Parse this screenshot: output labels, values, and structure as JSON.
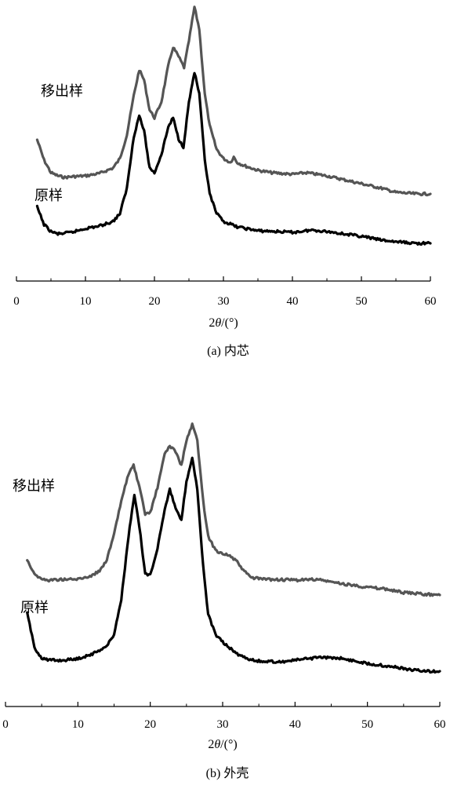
{
  "chart_data": [
    {
      "type": "line",
      "caption": "(a) 内芯",
      "xlabel_parts": [
        "2",
        "θ",
        "/(°)"
      ],
      "xlim": [
        0,
        60
      ],
      "x_ticks": [
        0,
        10,
        20,
        30,
        40,
        50,
        60
      ],
      "y_axis_shown": false,
      "grid": false,
      "series": [
        {
          "name": "移出样",
          "color": "#555555",
          "points": [
            [
              3,
              1.24
            ],
            [
              4,
              0.98
            ],
            [
              5,
              0.82
            ],
            [
              6,
              0.78
            ],
            [
              7,
              0.76
            ],
            [
              8,
              0.77
            ],
            [
              10,
              0.78
            ],
            [
              12,
              0.81
            ],
            [
              14,
              0.88
            ],
            [
              15,
              1.0
            ],
            [
              16,
              1.3
            ],
            [
              17,
              1.8
            ],
            [
              17.8,
              2.13
            ],
            [
              18.5,
              2.0
            ],
            [
              19.3,
              1.62
            ],
            [
              20,
              1.52
            ],
            [
              21,
              1.72
            ],
            [
              22,
              2.18
            ],
            [
              22.7,
              2.42
            ],
            [
              23.5,
              2.3
            ],
            [
              24.3,
              2.16
            ],
            [
              25,
              2.5
            ],
            [
              25.8,
              2.93
            ],
            [
              26.5,
              2.65
            ],
            [
              27.3,
              1.82
            ],
            [
              28,
              1.42
            ],
            [
              29,
              1.12
            ],
            [
              30,
              1.0
            ],
            [
              31,
              0.95
            ],
            [
              31.5,
              1.02
            ],
            [
              32,
              0.95
            ],
            [
              33,
              0.91
            ],
            [
              35,
              0.85
            ],
            [
              37,
              0.82
            ],
            [
              40,
              0.8
            ],
            [
              42,
              0.82
            ],
            [
              45,
              0.78
            ],
            [
              48,
              0.72
            ],
            [
              50,
              0.68
            ],
            [
              53,
              0.62
            ],
            [
              55,
              0.57
            ],
            [
              58,
              0.55
            ],
            [
              60,
              0.55
            ]
          ]
        },
        {
          "name": "原样",
          "color": "#000000",
          "points": [
            [
              3,
              0.38
            ],
            [
              4,
              0.16
            ],
            [
              5,
              0.07
            ],
            [
              6,
              0.04
            ],
            [
              7,
              0.05
            ],
            [
              8,
              0.06
            ],
            [
              10,
              0.11
            ],
            [
              12,
              0.14
            ],
            [
              14,
              0.2
            ],
            [
              15,
              0.3
            ],
            [
              16,
              0.62
            ],
            [
              17,
              1.28
            ],
            [
              17.8,
              1.55
            ],
            [
              18.5,
              1.35
            ],
            [
              19.3,
              0.88
            ],
            [
              20,
              0.82
            ],
            [
              21,
              1.05
            ],
            [
              22,
              1.4
            ],
            [
              22.7,
              1.52
            ],
            [
              23.5,
              1.25
            ],
            [
              24.2,
              1.15
            ],
            [
              25,
              1.72
            ],
            [
              25.8,
              2.1
            ],
            [
              26.5,
              1.82
            ],
            [
              27.3,
              0.98
            ],
            [
              28,
              0.55
            ],
            [
              29,
              0.3
            ],
            [
              30,
              0.2
            ],
            [
              32,
              0.13
            ],
            [
              35,
              0.08
            ],
            [
              38,
              0.07
            ],
            [
              40,
              0.06
            ],
            [
              43,
              0.09
            ],
            [
              46,
              0.06
            ],
            [
              50,
              0.01
            ],
            [
              53,
              -0.04
            ],
            [
              55,
              -0.06
            ],
            [
              58,
              -0.08
            ],
            [
              60,
              -0.08
            ]
          ]
        }
      ]
    },
    {
      "type": "line",
      "caption": "(b) 外壳",
      "xlabel_parts": [
        "2",
        "θ",
        "/(°)"
      ],
      "xlim": [
        0,
        60
      ],
      "x_ticks": [
        0,
        10,
        20,
        30,
        40,
        50,
        60
      ],
      "y_axis_shown": false,
      "grid": false,
      "series": [
        {
          "name": "移出样",
          "color": "#555555",
          "points": [
            [
              3,
              1.3
            ],
            [
              4,
              1.12
            ],
            [
              5,
              1.05
            ],
            [
              6,
              1.04
            ],
            [
              8,
              1.05
            ],
            [
              10,
              1.05
            ],
            [
              12,
              1.1
            ],
            [
              13,
              1.16
            ],
            [
              14,
              1.3
            ],
            [
              15,
              1.62
            ],
            [
              16,
              2.05
            ],
            [
              17,
              2.4
            ],
            [
              17.7,
              2.5
            ],
            [
              18.5,
              2.22
            ],
            [
              19.3,
              1.88
            ],
            [
              20,
              1.9
            ],
            [
              21,
              2.22
            ],
            [
              22,
              2.65
            ],
            [
              22.7,
              2.75
            ],
            [
              23.5,
              2.68
            ],
            [
              24.3,
              2.5
            ],
            [
              25,
              2.82
            ],
            [
              25.8,
              3.02
            ],
            [
              26.5,
              2.82
            ],
            [
              27.3,
              2.05
            ],
            [
              28,
              1.6
            ],
            [
              29,
              1.42
            ],
            [
              30,
              1.38
            ],
            [
              31,
              1.35
            ],
            [
              32,
              1.27
            ],
            [
              33,
              1.15
            ],
            [
              34,
              1.07
            ],
            [
              36,
              1.05
            ],
            [
              40,
              1.04
            ],
            [
              43,
              1.05
            ],
            [
              46,
              1.0
            ],
            [
              50,
              0.95
            ],
            [
              53,
              0.92
            ],
            [
              55,
              0.88
            ],
            [
              58,
              0.86
            ],
            [
              60,
              0.85
            ]
          ]
        },
        {
          "name": "原样",
          "color": "#000000",
          "points": [
            [
              3,
              0.62
            ],
            [
              4,
              0.18
            ],
            [
              5,
              0.05
            ],
            [
              6,
              0.02
            ],
            [
              8,
              0.02
            ],
            [
              10,
              0.04
            ],
            [
              12,
              0.1
            ],
            [
              14,
              0.2
            ],
            [
              15,
              0.35
            ],
            [
              16,
              0.8
            ],
            [
              17,
              1.6
            ],
            [
              17.8,
              2.12
            ],
            [
              18.5,
              1.72
            ],
            [
              19.3,
              1.12
            ],
            [
              20,
              1.1
            ],
            [
              21,
              1.45
            ],
            [
              22,
              1.95
            ],
            [
              22.7,
              2.2
            ],
            [
              23.5,
              1.95
            ],
            [
              24.3,
              1.8
            ],
            [
              25,
              2.3
            ],
            [
              25.8,
              2.6
            ],
            [
              26.5,
              2.2
            ],
            [
              27.3,
              1.22
            ],
            [
              28,
              0.6
            ],
            [
              29,
              0.35
            ],
            [
              30,
              0.25
            ],
            [
              32,
              0.1
            ],
            [
              34,
              0.02
            ],
            [
              36,
              0.0
            ],
            [
              38,
              0.0
            ],
            [
              40,
              0.02
            ],
            [
              43,
              0.05
            ],
            [
              46,
              0.05
            ],
            [
              50,
              -0.02
            ],
            [
              53,
              -0.06
            ],
            [
              56,
              -0.1
            ],
            [
              58,
              -0.12
            ],
            [
              60,
              -0.12
            ]
          ]
        }
      ]
    }
  ]
}
